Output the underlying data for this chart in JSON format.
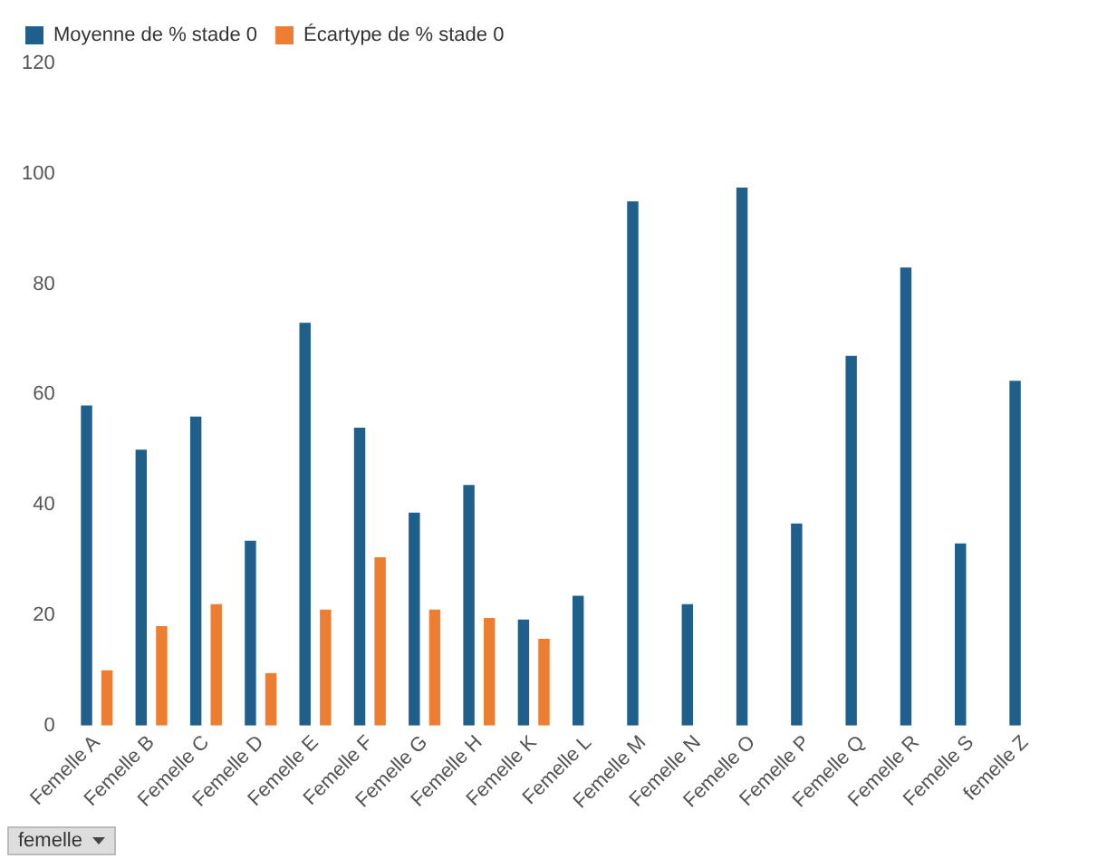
{
  "chart_data": {
    "type": "bar",
    "xlabel": "femelle",
    "categories": [
      "Femelle A",
      "Femelle B",
      "Femelle C",
      "Femelle D",
      "Femelle E",
      "Femelle F",
      "Femelle G",
      "Femelle H",
      "Femelle K",
      "Femelle L",
      "Femelle M",
      "Femelle N",
      "Femelle O",
      "Femelle P",
      "Femelle Q",
      "Femelle R",
      "Femelle S",
      "femelle Z"
    ],
    "series": [
      {
        "name": "Moyenne de % stade 0",
        "color": "#1f5f8b",
        "values": [
          58,
          50,
          56,
          33.5,
          73,
          54,
          38.6,
          43.6,
          19.2,
          23.5,
          95,
          22,
          97.5,
          36.6,
          67,
          83,
          33,
          62.5
        ]
      },
      {
        "name": "Écartype de % stade 0",
        "color": "#ed7d31",
        "values": [
          10,
          18,
          22,
          9.5,
          21,
          30.5,
          21,
          19.5,
          15.7,
          null,
          null,
          null,
          null,
          null,
          null,
          null,
          null,
          null
        ]
      }
    ],
    "ylim": [
      0,
      120
    ],
    "yticks": [
      0,
      20,
      40,
      60,
      80,
      100,
      120
    ],
    "grid": false,
    "legend": "top left"
  }
}
